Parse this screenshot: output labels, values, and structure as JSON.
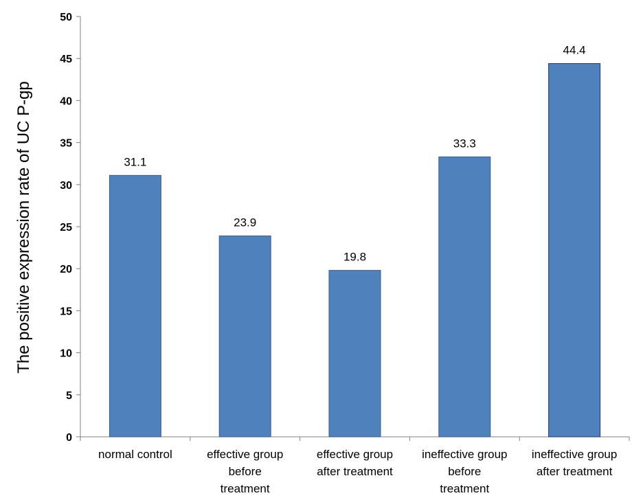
{
  "chart_data": {
    "type": "bar",
    "title": "",
    "xlabel": "",
    "ylabel": "The positive expression rate of UC P-gp",
    "categories": [
      [
        "normal control"
      ],
      [
        "effective group",
        "before",
        "treatment"
      ],
      [
        "effective group",
        "after treatment"
      ],
      [
        "ineffective group",
        "before",
        "treatment"
      ],
      [
        "ineffective group",
        "after treatment"
      ]
    ],
    "values": [
      31.1,
      23.9,
      19.8,
      33.3,
      44.4
    ],
    "data_labels": [
      "31.1",
      "23.9",
      "19.8",
      "33.3",
      "44.4"
    ],
    "ylim": [
      0,
      50
    ],
    "yticks": [
      0,
      5,
      10,
      15,
      20,
      25,
      30,
      35,
      40,
      45,
      50
    ],
    "grid": false,
    "legend": "none",
    "bar_color": "#4f81bd",
    "bar_edge_color": "#385d8a",
    "highlight_edge_color": "#1f3864"
  }
}
